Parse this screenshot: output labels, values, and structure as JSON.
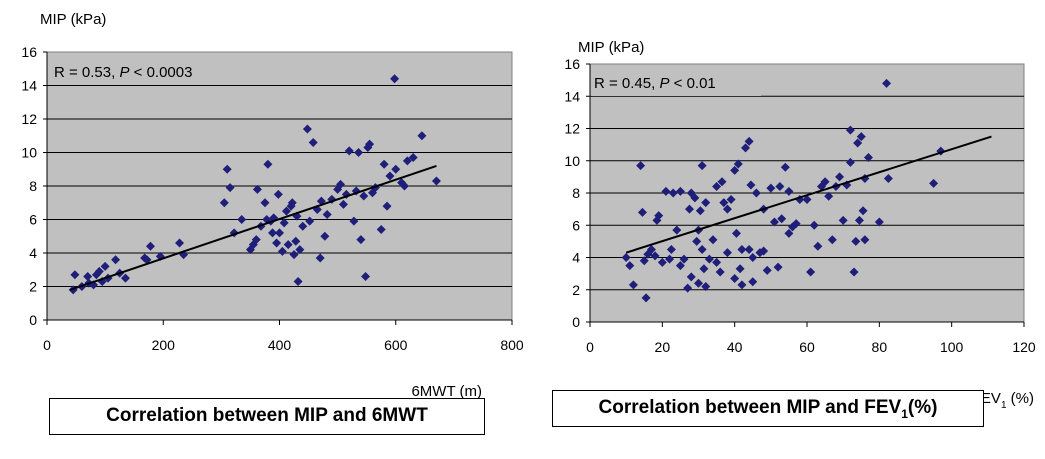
{
  "chart_data": [
    {
      "type": "scatter",
      "title": "",
      "ylabel": "MIP (kPa)",
      "xlabel": "6MWT (m)",
      "xlim": [
        0,
        800
      ],
      "ylim": [
        0,
        16
      ],
      "xticks": [
        "0",
        "200",
        "400",
        "600",
        "800"
      ],
      "yticks": [
        "0",
        "2",
        "4",
        "6",
        "8",
        "10",
        "12",
        "14",
        "16"
      ],
      "grid": true,
      "annotation": {
        "prefix": "R = 0.53, ",
        "italic": "P",
        "suffix": " < 0.0003"
      },
      "caption": {
        "text": "Correlation between MIP and 6MWT",
        "sub": "",
        "tail": ""
      },
      "trendline": [
        [
          40,
          1.8
        ],
        [
          670,
          9.2
        ]
      ],
      "marker_color": "#1f1f7a",
      "plot_bg": "#c0c0c0",
      "points": [
        [
          45,
          1.8
        ],
        [
          48,
          2.7
        ],
        [
          60,
          2.0
        ],
        [
          70,
          2.6
        ],
        [
          72,
          2.2
        ],
        [
          80,
          2.1
        ],
        [
          85,
          2.7
        ],
        [
          90,
          2.9
        ],
        [
          95,
          2.3
        ],
        [
          100,
          3.2
        ],
        [
          105,
          2.5
        ],
        [
          118,
          3.6
        ],
        [
          125,
          2.8
        ],
        [
          135,
          2.5
        ],
        [
          168,
          3.7
        ],
        [
          172,
          3.6
        ],
        [
          178,
          4.4
        ],
        [
          195,
          3.8
        ],
        [
          228,
          4.6
        ],
        [
          235,
          3.9
        ],
        [
          305,
          7.0
        ],
        [
          310,
          9.0
        ],
        [
          315,
          7.9
        ],
        [
          322,
          5.2
        ],
        [
          335,
          6.0
        ],
        [
          350,
          4.2
        ],
        [
          355,
          4.5
        ],
        [
          360,
          4.8
        ],
        [
          362,
          7.8
        ],
        [
          368,
          5.6
        ],
        [
          375,
          7.0
        ],
        [
          378,
          6.0
        ],
        [
          380,
          9.3
        ],
        [
          385,
          5.9
        ],
        [
          388,
          5.2
        ],
        [
          390,
          6.1
        ],
        [
          395,
          4.6
        ],
        [
          398,
          7.5
        ],
        [
          400,
          5.2
        ],
        [
          405,
          4.1
        ],
        [
          408,
          5.8
        ],
        [
          412,
          6.5
        ],
        [
          415,
          4.5
        ],
        [
          420,
          6.8
        ],
        [
          422,
          7.0
        ],
        [
          425,
          3.9
        ],
        [
          428,
          4.7
        ],
        [
          430,
          6.2
        ],
        [
          432,
          2.3
        ],
        [
          435,
          4.2
        ],
        [
          440,
          5.6
        ],
        [
          448,
          11.4
        ],
        [
          452,
          5.9
        ],
        [
          458,
          10.6
        ],
        [
          465,
          6.6
        ],
        [
          470,
          3.7
        ],
        [
          472,
          7.1
        ],
        [
          478,
          5.0
        ],
        [
          482,
          6.3
        ],
        [
          490,
          7.2
        ],
        [
          500,
          7.8
        ],
        [
          505,
          8.1
        ],
        [
          510,
          6.9
        ],
        [
          515,
          7.5
        ],
        [
          520,
          10.1
        ],
        [
          528,
          5.9
        ],
        [
          532,
          7.7
        ],
        [
          536,
          10.0
        ],
        [
          540,
          4.8
        ],
        [
          545,
          7.4
        ],
        [
          548,
          2.6
        ],
        [
          552,
          10.3
        ],
        [
          555,
          10.5
        ],
        [
          560,
          7.6
        ],
        [
          565,
          7.9
        ],
        [
          575,
          5.4
        ],
        [
          580,
          9.3
        ],
        [
          585,
          6.8
        ],
        [
          590,
          8.6
        ],
        [
          598,
          14.4
        ],
        [
          600,
          9.0
        ],
        [
          610,
          8.2
        ],
        [
          615,
          8.0
        ],
        [
          620,
          9.5
        ],
        [
          630,
          9.7
        ],
        [
          645,
          11.0
        ],
        [
          670,
          8.3
        ]
      ]
    },
    {
      "type": "scatter",
      "title": "",
      "ylabel": "MIP (kPa)",
      "xlabel": {
        "text": "FEV",
        "sub": "1",
        "tail": " (%)"
      },
      "xlim": [
        0,
        120
      ],
      "ylim": [
        0,
        16
      ],
      "xticks": [
        "0",
        "20",
        "40",
        "60",
        "80",
        "100",
        "120"
      ],
      "yticks": [
        "0",
        "2",
        "4",
        "6",
        "8",
        "10",
        "12",
        "14",
        "16"
      ],
      "grid": true,
      "annotation": {
        "prefix": "R = 0.45, ",
        "italic": "P",
        "suffix": " < 0.01"
      },
      "caption": {
        "text": "Correlation between MIP and FEV",
        "sub": "1",
        "tail": "(%)"
      },
      "trendline": [
        [
          10,
          4.3
        ],
        [
          111,
          11.5
        ]
      ],
      "marker_color": "#1f1f7a",
      "plot_bg": "#c0c0c0",
      "points": [
        [
          10,
          4.0
        ],
        [
          11,
          3.5
        ],
        [
          12,
          2.3
        ],
        [
          14,
          9.7
        ],
        [
          14.5,
          6.8
        ],
        [
          15,
          3.8
        ],
        [
          15.5,
          1.5
        ],
        [
          16,
          4.2
        ],
        [
          17,
          4.5
        ],
        [
          18,
          4.1
        ],
        [
          18.5,
          6.3
        ],
        [
          19,
          6.6
        ],
        [
          20,
          3.7
        ],
        [
          21,
          8.1
        ],
        [
          22,
          3.9
        ],
        [
          22.5,
          4.5
        ],
        [
          23,
          8.0
        ],
        [
          24,
          5.7
        ],
        [
          25,
          3.5
        ],
        [
          25,
          8.1
        ],
        [
          26,
          3.9
        ],
        [
          27,
          2.1
        ],
        [
          27.5,
          7.0
        ],
        [
          28,
          8.0
        ],
        [
          28,
          2.8
        ],
        [
          29,
          7.7
        ],
        [
          29.5,
          5.0
        ],
        [
          30,
          5.7
        ],
        [
          30,
          2.4
        ],
        [
          30.5,
          6.9
        ],
        [
          31,
          9.7
        ],
        [
          31,
          4.5
        ],
        [
          31.5,
          3.3
        ],
        [
          32,
          2.2
        ],
        [
          32,
          7.4
        ],
        [
          33,
          3.9
        ],
        [
          34,
          5.1
        ],
        [
          35,
          3.7
        ],
        [
          35,
          8.4
        ],
        [
          36,
          3.1
        ],
        [
          36.5,
          8.7
        ],
        [
          37,
          7.4
        ],
        [
          38,
          7.0
        ],
        [
          38,
          4.3
        ],
        [
          39,
          7.6
        ],
        [
          40,
          9.4
        ],
        [
          40,
          2.7
        ],
        [
          40.5,
          5.5
        ],
        [
          41,
          9.8
        ],
        [
          41.5,
          3.3
        ],
        [
          42,
          4.5
        ],
        [
          42,
          2.3
        ],
        [
          43,
          10.8
        ],
        [
          44,
          11.2
        ],
        [
          44,
          4.5
        ],
        [
          44.5,
          8.5
        ],
        [
          45,
          4.0
        ],
        [
          45,
          2.5
        ],
        [
          46,
          8.0
        ],
        [
          47,
          4.3
        ],
        [
          48,
          4.4
        ],
        [
          48,
          7.0
        ],
        [
          49,
          3.2
        ],
        [
          50,
          8.3
        ],
        [
          51,
          6.2
        ],
        [
          52,
          3.4
        ],
        [
          52.5,
          8.4
        ],
        [
          53,
          6.4
        ],
        [
          54,
          9.6
        ],
        [
          55,
          5.5
        ],
        [
          55,
          8.1
        ],
        [
          56,
          5.9
        ],
        [
          57,
          6.1
        ],
        [
          58,
          7.6
        ],
        [
          60,
          7.6
        ],
        [
          61,
          3.1
        ],
        [
          62,
          6.0
        ],
        [
          63,
          4.7
        ],
        [
          64,
          8.4
        ],
        [
          65,
          8.7
        ],
        [
          66,
          7.8
        ],
        [
          67,
          5.1
        ],
        [
          68,
          8.4
        ],
        [
          69,
          9.0
        ],
        [
          70,
          6.3
        ],
        [
          71,
          8.5
        ],
        [
          72,
          11.9
        ],
        [
          72,
          9.9
        ],
        [
          73,
          3.1
        ],
        [
          73.5,
          5.0
        ],
        [
          74,
          11.1
        ],
        [
          74.5,
          6.3
        ],
        [
          75,
          11.5
        ],
        [
          75.5,
          6.9
        ],
        [
          76,
          8.9
        ],
        [
          76,
          5.1
        ],
        [
          77,
          10.2
        ],
        [
          80,
          6.2
        ],
        [
          82,
          14.8
        ],
        [
          82.5,
          8.9
        ],
        [
          95,
          8.6
        ],
        [
          97,
          10.6
        ]
      ]
    }
  ]
}
